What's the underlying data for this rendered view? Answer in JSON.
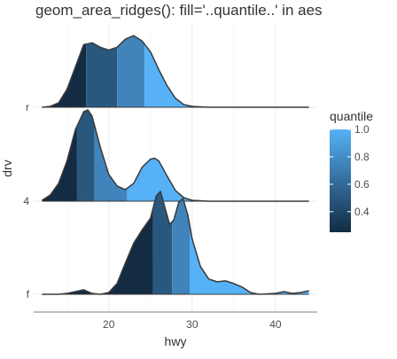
{
  "chart_data": {
    "type": "area",
    "title": "geom_area_ridges(): fill='..quantile..' in aes",
    "xlabel": "hwy",
    "ylabel": "drv",
    "x_ticks": [
      20,
      30,
      40
    ],
    "xlim": [
      11,
      45
    ],
    "categories": [
      "f",
      "4",
      "r"
    ],
    "series": [
      {
        "name": "r",
        "points": [
          [
            12,
            0.0
          ],
          [
            13,
            0.01
          ],
          [
            14,
            0.05
          ],
          [
            15,
            0.2
          ],
          [
            16,
            0.45
          ],
          [
            17,
            0.7
          ],
          [
            18,
            0.72
          ],
          [
            19,
            0.67
          ],
          [
            20,
            0.64
          ],
          [
            21,
            0.67
          ],
          [
            22,
            0.76
          ],
          [
            23,
            0.8
          ],
          [
            24,
            0.74
          ],
          [
            25,
            0.62
          ],
          [
            26,
            0.42
          ],
          [
            27,
            0.24
          ],
          [
            28,
            0.1
          ],
          [
            29,
            0.03
          ],
          [
            30,
            0.01
          ],
          [
            32,
            0.0
          ],
          [
            44,
            0.0
          ]
        ],
        "quantile_breaks": [
          17.3,
          21.0,
          24.3
        ]
      },
      {
        "name": "4",
        "points": [
          [
            12,
            0.01
          ],
          [
            13,
            0.07
          ],
          [
            14,
            0.2
          ],
          [
            15,
            0.45
          ],
          [
            16,
            0.8
          ],
          [
            17,
            1.0
          ],
          [
            17.5,
            1.02
          ],
          [
            18,
            0.95
          ],
          [
            19,
            0.6
          ],
          [
            20,
            0.3
          ],
          [
            21,
            0.17
          ],
          [
            22,
            0.13
          ],
          [
            23,
            0.2
          ],
          [
            24,
            0.38
          ],
          [
            25,
            0.47
          ],
          [
            25.5,
            0.48
          ],
          [
            26,
            0.45
          ],
          [
            27,
            0.28
          ],
          [
            28,
            0.12
          ],
          [
            29,
            0.04
          ],
          [
            30,
            0.01
          ],
          [
            32,
            0.0
          ],
          [
            44,
            0.0
          ]
        ],
        "quantile_breaks": [
          16.2,
          18.3,
          22.2
        ]
      },
      {
        "name": "f",
        "points": [
          [
            12,
            0.0
          ],
          [
            14,
            0.0
          ],
          [
            15,
            0.01
          ],
          [
            16,
            0.03
          ],
          [
            17,
            0.05
          ],
          [
            18,
            0.01
          ],
          [
            19,
            0.0
          ],
          [
            20,
            0.02
          ],
          [
            21,
            0.12
          ],
          [
            22,
            0.35
          ],
          [
            23,
            0.57
          ],
          [
            24,
            0.72
          ],
          [
            25,
            0.85
          ],
          [
            25.7,
            1.1
          ],
          [
            26.2,
            1.15
          ],
          [
            26.7,
            0.98
          ],
          [
            27.3,
            0.78
          ],
          [
            27.8,
            0.83
          ],
          [
            28.4,
            1.03
          ],
          [
            28.9,
            1.07
          ],
          [
            29.5,
            0.88
          ],
          [
            30,
            0.62
          ],
          [
            31,
            0.31
          ],
          [
            32,
            0.17
          ],
          [
            33,
            0.14
          ],
          [
            34,
            0.15
          ],
          [
            35,
            0.12
          ],
          [
            36,
            0.08
          ],
          [
            37,
            0.02
          ],
          [
            38,
            0.0
          ],
          [
            40,
            0.01
          ],
          [
            41,
            0.03
          ],
          [
            42,
            0.01
          ],
          [
            43,
            0.02
          ],
          [
            44,
            0.04
          ]
        ],
        "quantile_breaks": [
          25.3,
          27.6,
          29.7
        ]
      }
    ],
    "legend": {
      "title": "quantile",
      "ticks": [
        0.4,
        0.6,
        0.8,
        1.0
      ],
      "tick_labels": [
        "0.4",
        "0.6",
        "0.8",
        "1.0"
      ],
      "range": [
        0.25,
        1.0
      ],
      "color_low": "#132B43",
      "color_high": "#56B1F7",
      "position": "right"
    },
    "grid": true,
    "outline_color": "#3a3a3a"
  }
}
